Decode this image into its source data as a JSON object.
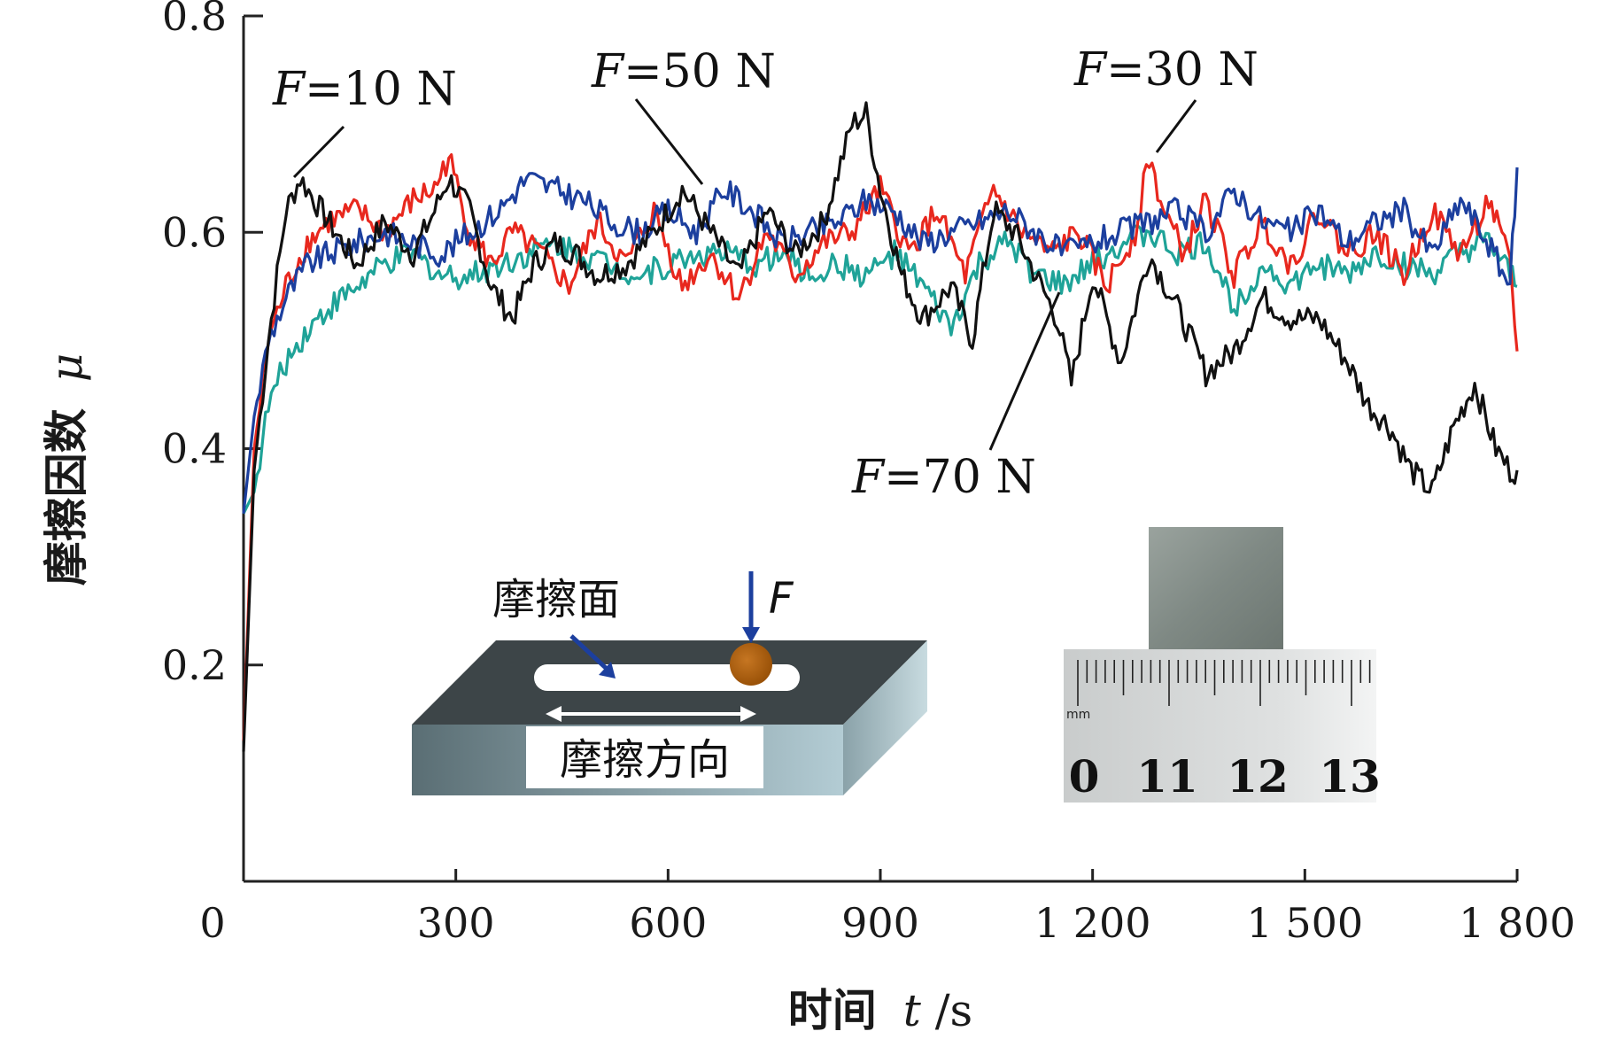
{
  "chart_data": {
    "type": "line",
    "xlabel_cn": "时间",
    "xlabel_var": "t",
    "xlabel_unit": "/s",
    "ylabel_cn": "摩擦因数",
    "ylabel_var": "μ",
    "xlim": [
      0,
      1800
    ],
    "ylim": [
      0,
      0.8
    ],
    "xticks": [
      "0",
      "300",
      "600",
      "900",
      "1 200",
      "1 500",
      "1 800"
    ],
    "xtick_values": [
      0,
      300,
      600,
      900,
      1200,
      1500,
      1800
    ],
    "yticks": [
      "0.2",
      "0.4",
      "0.6",
      "0.8"
    ],
    "ytick_values": [
      0.2,
      0.4,
      0.6,
      0.8
    ],
    "grid": false,
    "series": [
      {
        "name": "F=10 N",
        "color": "#111111",
        "x": [
          0,
          15,
          35,
          60,
          80,
          100,
          130,
          160,
          200,
          240,
          270,
          290,
          320,
          350,
          380,
          410,
          440,
          470,
          500,
          540,
          580,
          620,
          660,
          700,
          740,
          780,
          820,
          860,
          880,
          900,
          930,
          960,
          1000,
          1030,
          1060,
          1090,
          1120,
          1150,
          1170,
          1200,
          1240,
          1280,
          1320,
          1360,
          1400,
          1440,
          1480,
          1520,
          1560,
          1590,
          1620,
          1650,
          1680,
          1710,
          1740,
          1770,
          1790,
          1800
        ],
        "y": [
          0.12,
          0.38,
          0.5,
          0.62,
          0.65,
          0.63,
          0.6,
          0.57,
          0.61,
          0.58,
          0.62,
          0.65,
          0.62,
          0.55,
          0.52,
          0.57,
          0.59,
          0.58,
          0.56,
          0.57,
          0.6,
          0.64,
          0.6,
          0.56,
          0.62,
          0.58,
          0.61,
          0.7,
          0.71,
          0.64,
          0.56,
          0.52,
          0.55,
          0.5,
          0.62,
          0.6,
          0.56,
          0.52,
          0.46,
          0.56,
          0.48,
          0.58,
          0.53,
          0.47,
          0.49,
          0.54,
          0.52,
          0.52,
          0.48,
          0.44,
          0.42,
          0.38,
          0.36,
          0.42,
          0.46,
          0.4,
          0.38,
          0.38
        ]
      },
      {
        "name": "F=30 N",
        "color": "#e8281e",
        "x": [
          0,
          15,
          35,
          60,
          90,
          120,
          160,
          200,
          240,
          270,
          290,
          320,
          350,
          380,
          420,
          460,
          500,
          540,
          580,
          620,
          660,
          700,
          740,
          780,
          820,
          860,
          900,
          940,
          980,
          1020,
          1060,
          1100,
          1140,
          1180,
          1220,
          1260,
          1280,
          1300,
          1330,
          1360,
          1400,
          1440,
          1480,
          1520,
          1560,
          1600,
          1640,
          1680,
          1720,
          1760,
          1790,
          1800
        ],
        "y": [
          0.13,
          0.4,
          0.5,
          0.55,
          0.59,
          0.61,
          0.62,
          0.6,
          0.63,
          0.64,
          0.67,
          0.6,
          0.57,
          0.6,
          0.58,
          0.55,
          0.61,
          0.57,
          0.62,
          0.55,
          0.58,
          0.54,
          0.6,
          0.56,
          0.59,
          0.6,
          0.64,
          0.58,
          0.62,
          0.56,
          0.64,
          0.6,
          0.58,
          0.6,
          0.55,
          0.6,
          0.67,
          0.62,
          0.58,
          0.63,
          0.56,
          0.61,
          0.57,
          0.62,
          0.58,
          0.6,
          0.56,
          0.62,
          0.58,
          0.63,
          0.57,
          0.49
        ]
      },
      {
        "name": "F=50 N",
        "color": "#1c3f9e",
        "x": [
          0,
          15,
          35,
          60,
          90,
          120,
          160,
          200,
          240,
          280,
          320,
          360,
          400,
          440,
          480,
          520,
          560,
          600,
          640,
          680,
          720,
          760,
          800,
          840,
          880,
          920,
          960,
          1000,
          1040,
          1080,
          1120,
          1160,
          1200,
          1240,
          1280,
          1320,
          1360,
          1400,
          1440,
          1480,
          1520,
          1560,
          1600,
          1640,
          1680,
          1720,
          1760,
          1790,
          1800
        ],
        "y": [
          0.34,
          0.43,
          0.5,
          0.54,
          0.57,
          0.58,
          0.59,
          0.6,
          0.59,
          0.58,
          0.6,
          0.62,
          0.65,
          0.64,
          0.63,
          0.61,
          0.6,
          0.62,
          0.6,
          0.64,
          0.62,
          0.59,
          0.6,
          0.61,
          0.63,
          0.62,
          0.59,
          0.6,
          0.61,
          0.62,
          0.6,
          0.58,
          0.59,
          0.6,
          0.61,
          0.62,
          0.6,
          0.64,
          0.61,
          0.6,
          0.62,
          0.59,
          0.61,
          0.62,
          0.58,
          0.63,
          0.59,
          0.55,
          0.66
        ]
      },
      {
        "name": "F=70 N",
        "color": "#1fa398",
        "x": [
          0,
          15,
          35,
          60,
          90,
          120,
          160,
          200,
          240,
          280,
          320,
          360,
          400,
          440,
          480,
          520,
          560,
          600,
          640,
          680,
          720,
          760,
          800,
          840,
          880,
          920,
          960,
          1000,
          1040,
          1080,
          1120,
          1160,
          1200,
          1240,
          1280,
          1320,
          1360,
          1400,
          1440,
          1480,
          1520,
          1560,
          1600,
          1640,
          1680,
          1720,
          1760,
          1790,
          1800
        ],
        "y": [
          0.34,
          0.36,
          0.44,
          0.48,
          0.51,
          0.53,
          0.55,
          0.57,
          0.58,
          0.56,
          0.56,
          0.57,
          0.58,
          0.59,
          0.58,
          0.57,
          0.56,
          0.57,
          0.58,
          0.58,
          0.57,
          0.58,
          0.56,
          0.57,
          0.56,
          0.58,
          0.55,
          0.51,
          0.57,
          0.59,
          0.56,
          0.55,
          0.57,
          0.59,
          0.6,
          0.58,
          0.59,
          0.53,
          0.57,
          0.55,
          0.57,
          0.56,
          0.58,
          0.57,
          0.56,
          0.58,
          0.59,
          0.56,
          0.55
        ]
      }
    ],
    "annotations": [
      {
        "label_var": "F",
        "label_rest": "=10 N",
        "series": "F=10 N"
      },
      {
        "label_var": "F",
        "label_rest": "=50 N",
        "series": "F=50 N"
      },
      {
        "label_var": "F",
        "label_rest": "=30 N",
        "series": "F=30 N"
      },
      {
        "label_var": "F",
        "label_rest": "=70 N",
        "series": "F=70 N"
      }
    ]
  },
  "inset_schematic": {
    "friction_surface_label": "摩擦面",
    "force_label": "F",
    "direction_label": "摩擦方向"
  },
  "inset_photo": {
    "unit_label": "mm",
    "scale_numbers": [
      "0",
      "11",
      "12",
      "13"
    ]
  },
  "colors": {
    "axis": "#222222",
    "block_top": "#3d4548",
    "block_front_dark": "#5f7378",
    "block_front_light": "#aec6ce",
    "ball": "#b5650f",
    "arrow_blue": "#1c3f9e"
  }
}
